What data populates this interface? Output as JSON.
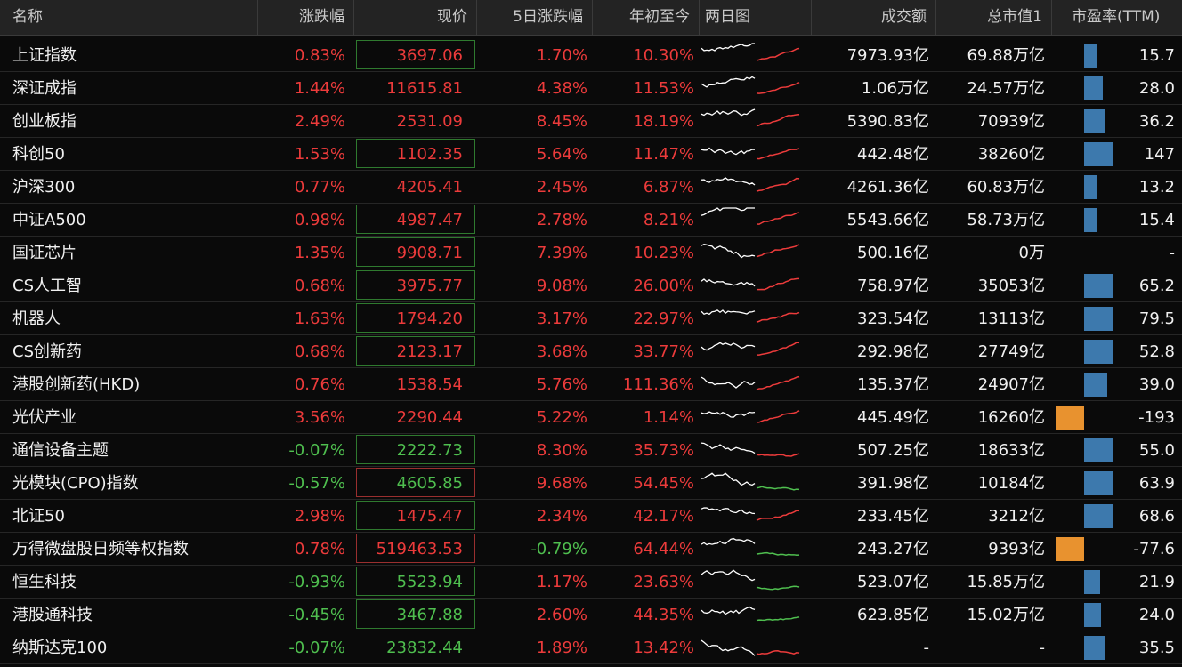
{
  "headers": {
    "name": "名称",
    "change": "涨跌幅",
    "price": "现价",
    "five_day": "5日涨跌幅",
    "ytd": "年初至今",
    "two_day_chart": "两日图",
    "turnover": "成交额",
    "mktcap": "总市值1",
    "pe": "市盈率(TTM)"
  },
  "colors": {
    "up": "#ec3b3b",
    "down": "#4fbf4f",
    "pe_positive": "#3d79ad",
    "pe_negative": "#e8922f"
  },
  "rows": [
    {
      "name": "上证指数",
      "change": "0.83%",
      "price": "3697.06",
      "five_day": "1.70%",
      "ytd": "10.30%",
      "turnover": "7973.93亿",
      "mktcap": "69.88万亿",
      "pe": "15.7",
      "pe_value": 15.7,
      "trend": "up",
      "box": "green"
    },
    {
      "name": "深证成指",
      "change": "1.44%",
      "price": "11615.81",
      "five_day": "4.38%",
      "ytd": "11.53%",
      "turnover": "1.06万亿",
      "mktcap": "24.57万亿",
      "pe": "28.0",
      "pe_value": 28.0,
      "trend": "up",
      "box": ""
    },
    {
      "name": "创业板指",
      "change": "2.49%",
      "price": "2531.09",
      "five_day": "8.45%",
      "ytd": "18.19%",
      "turnover": "5390.83亿",
      "mktcap": "70939亿",
      "pe": "36.2",
      "pe_value": 36.2,
      "trend": "up",
      "box": ""
    },
    {
      "name": "科创50",
      "change": "1.53%",
      "price": "1102.35",
      "five_day": "5.64%",
      "ytd": "11.47%",
      "turnover": "442.48亿",
      "mktcap": "38260亿",
      "pe": "147",
      "pe_value": 147,
      "trend": "up",
      "box": "green"
    },
    {
      "name": "沪深300",
      "change": "0.77%",
      "price": "4205.41",
      "five_day": "2.45%",
      "ytd": "6.87%",
      "turnover": "4261.36亿",
      "mktcap": "60.83万亿",
      "pe": "13.2",
      "pe_value": 13.2,
      "trend": "up",
      "box": ""
    },
    {
      "name": "中证A500",
      "change": "0.98%",
      "price": "4987.47",
      "five_day": "2.78%",
      "ytd": "8.21%",
      "turnover": "5543.66亿",
      "mktcap": "58.73万亿",
      "pe": "15.4",
      "pe_value": 15.4,
      "trend": "up",
      "box": "green"
    },
    {
      "name": "国证芯片",
      "change": "1.35%",
      "price": "9908.71",
      "five_day": "7.39%",
      "ytd": "10.23%",
      "turnover": "500.16亿",
      "mktcap": "0万",
      "pe": "-",
      "pe_value": null,
      "trend": "up",
      "box": "green"
    },
    {
      "name": "CS人工智",
      "change": "0.68%",
      "price": "3975.77",
      "five_day": "9.08%",
      "ytd": "26.00%",
      "turnover": "758.97亿",
      "mktcap": "35053亿",
      "pe": "65.2",
      "pe_value": 65.2,
      "trend": "up",
      "box": "green"
    },
    {
      "name": "机器人",
      "change": "1.63%",
      "price": "1794.20",
      "five_day": "3.17%",
      "ytd": "22.97%",
      "turnover": "323.54亿",
      "mktcap": "13113亿",
      "pe": "79.5",
      "pe_value": 79.5,
      "trend": "up",
      "box": "green"
    },
    {
      "name": "CS创新药",
      "change": "0.68%",
      "price": "2123.17",
      "five_day": "3.68%",
      "ytd": "33.77%",
      "turnover": "292.98亿",
      "mktcap": "27749亿",
      "pe": "52.8",
      "pe_value": 52.8,
      "trend": "up",
      "box": "green"
    },
    {
      "name": "港股创新药(HKD)",
      "change": "0.76%",
      "price": "1538.54",
      "five_day": "5.76%",
      "ytd": "111.36%",
      "turnover": "135.37亿",
      "mktcap": "24907亿",
      "pe": "39.0",
      "pe_value": 39.0,
      "trend": "up",
      "box": ""
    },
    {
      "name": "光伏产业",
      "change": "3.56%",
      "price": "2290.44",
      "five_day": "5.22%",
      "ytd": "1.14%",
      "turnover": "445.49亿",
      "mktcap": "16260亿",
      "pe": "-193",
      "pe_value": -193,
      "trend": "up",
      "box": ""
    },
    {
      "name": "通信设备主题",
      "change": "-0.07%",
      "price": "2222.73",
      "five_day": "8.30%",
      "ytd": "35.73%",
      "turnover": "507.25亿",
      "mktcap": "18633亿",
      "pe": "55.0",
      "pe_value": 55.0,
      "trend": "mixed",
      "box": "green"
    },
    {
      "name": "光模块(CPO)指数",
      "change": "-0.57%",
      "price": "4605.85",
      "five_day": "9.68%",
      "ytd": "54.45%",
      "turnover": "391.98亿",
      "mktcap": "10184亿",
      "pe": "63.9",
      "pe_value": 63.9,
      "trend": "down",
      "box": "red"
    },
    {
      "name": "北证50",
      "change": "2.98%",
      "price": "1475.47",
      "five_day": "2.34%",
      "ytd": "42.17%",
      "turnover": "233.45亿",
      "mktcap": "3212亿",
      "pe": "68.6",
      "pe_value": 68.6,
      "trend": "up",
      "box": "green"
    },
    {
      "name": "万得微盘股日频等权指数",
      "change": "0.78%",
      "price": "519463.53",
      "five_day": "-0.79%",
      "ytd": "64.44%",
      "turnover": "243.27亿",
      "mktcap": "9393亿",
      "pe": "-77.6",
      "pe_value": -77.6,
      "trend": "down",
      "box": "red"
    },
    {
      "name": "恒生科技",
      "change": "-0.93%",
      "price": "5523.94",
      "five_day": "1.17%",
      "ytd": "23.63%",
      "turnover": "523.07亿",
      "mktcap": "15.85万亿",
      "pe": "21.9",
      "pe_value": 21.9,
      "trend": "down",
      "box": "green"
    },
    {
      "name": "港股通科技",
      "change": "-0.45%",
      "price": "3467.88",
      "five_day": "2.60%",
      "ytd": "44.35%",
      "turnover": "623.85亿",
      "mktcap": "15.02万亿",
      "pe": "24.0",
      "pe_value": 24.0,
      "trend": "down",
      "box": "green"
    },
    {
      "name": "纳斯达克100",
      "change": "-0.07%",
      "price": "23832.44",
      "five_day": "1.89%",
      "ytd": "13.42%",
      "turnover": "-",
      "mktcap": "-",
      "pe": "35.5",
      "pe_value": 35.5,
      "trend": "mixed",
      "box": ""
    }
  ]
}
